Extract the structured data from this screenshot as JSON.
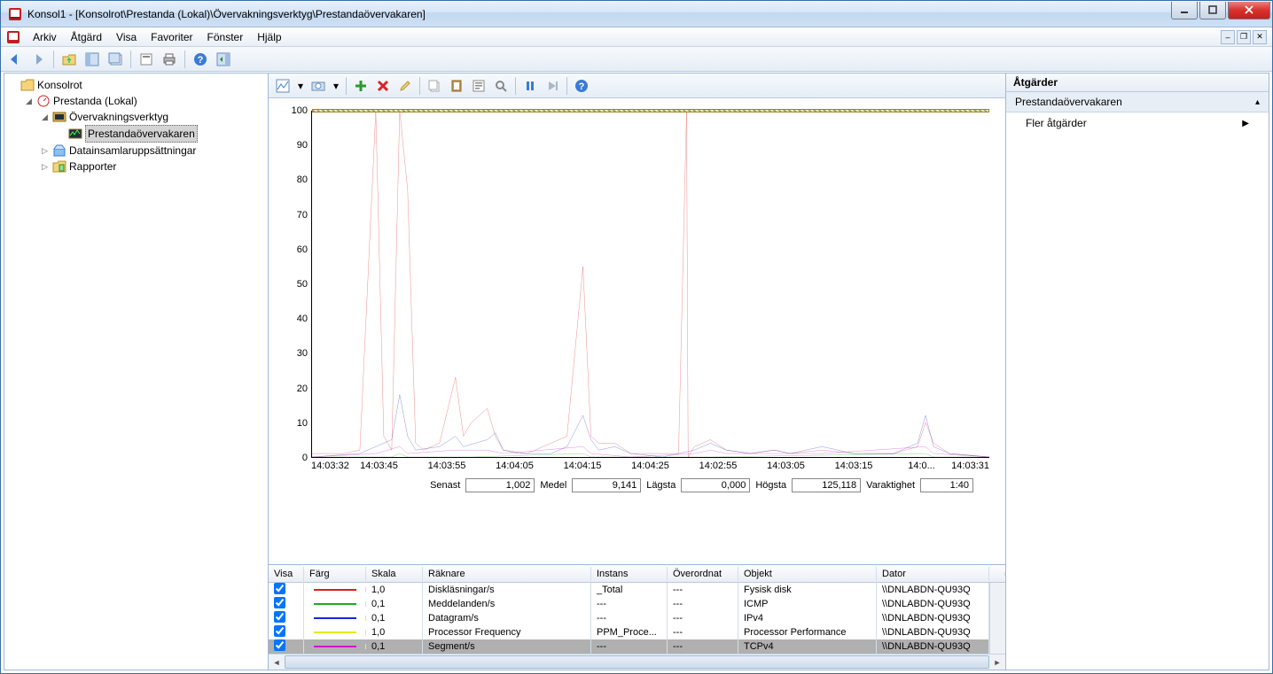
{
  "window": {
    "title": "Konsol1 - [Konsolrot\\Prestanda (Lokal)\\Övervakningsverktyg\\Prestandaövervakaren]"
  },
  "menu": {
    "arkiv": "Arkiv",
    "atgard": "Åtgärd",
    "visa": "Visa",
    "favoriter": "Favoriter",
    "fonster": "Fönster",
    "hjalp": "Hjälp"
  },
  "tree": {
    "root": "Konsolrot",
    "perf": "Prestanda (Lokal)",
    "monTools": "Övervakningsverktyg",
    "perfMon": "Prestandaövervakaren",
    "dataSets": "Datainsamlaruppsättningar",
    "reports": "Rapporter"
  },
  "actionsPane": {
    "title": "Åtgärder",
    "section": "Prestandaövervakaren",
    "more": "Fler åtgärder"
  },
  "chart": {
    "ylim": [
      0,
      100
    ],
    "ytick": 10,
    "xlabels": [
      "14:03:32",
      "14:03:45",
      "14:03:55",
      "14:04:05",
      "14:04:15",
      "14:04:25",
      "14:02:55",
      "14:03:05",
      "14:03:15",
      "14:0...",
      "14:03:31"
    ],
    "series": {
      "red": {
        "color": "#e11b1b",
        "width": 1,
        "pts": [
          [
            0,
            1
          ],
          [
            4,
            1
          ],
          [
            6,
            2
          ],
          [
            8,
            100
          ],
          [
            9,
            6
          ],
          [
            10,
            2
          ],
          [
            11,
            100
          ],
          [
            12,
            77
          ],
          [
            13,
            4
          ],
          [
            14,
            2
          ],
          [
            16,
            4
          ],
          [
            18,
            23
          ],
          [
            19,
            6
          ],
          [
            20,
            10
          ],
          [
            22,
            14
          ],
          [
            23,
            6
          ],
          [
            24,
            2
          ],
          [
            27,
            1
          ],
          [
            32,
            6
          ],
          [
            34,
            55
          ],
          [
            35,
            6
          ],
          [
            36,
            4
          ],
          [
            38,
            4
          ],
          [
            40,
            1
          ],
          [
            46,
            1
          ],
          [
            47,
            100
          ],
          [
            47.2,
            0
          ],
          [
            48,
            3
          ],
          [
            50,
            5
          ],
          [
            52,
            2
          ],
          [
            55,
            1
          ],
          [
            58,
            2
          ],
          [
            60,
            1
          ],
          [
            64,
            2
          ],
          [
            68,
            1
          ],
          [
            73,
            1
          ],
          [
            76,
            3
          ],
          [
            77,
            10
          ],
          [
            78,
            4
          ],
          [
            80,
            1
          ],
          [
            85,
            0
          ]
        ]
      },
      "blue": {
        "color": "#1528d4",
        "width": 1,
        "pts": [
          [
            0,
            0
          ],
          [
            6,
            1
          ],
          [
            8,
            3
          ],
          [
            10,
            5
          ],
          [
            11,
            18
          ],
          [
            12,
            6
          ],
          [
            13,
            2
          ],
          [
            16,
            3
          ],
          [
            18,
            6
          ],
          [
            19,
            3
          ],
          [
            22,
            5
          ],
          [
            23,
            7
          ],
          [
            24,
            2
          ],
          [
            26,
            1
          ],
          [
            30,
            1
          ],
          [
            32,
            3
          ],
          [
            34,
            12
          ],
          [
            35,
            5
          ],
          [
            36,
            2
          ],
          [
            38,
            3
          ],
          [
            40,
            1
          ],
          [
            44,
            0
          ],
          [
            48,
            2
          ],
          [
            50,
            4
          ],
          [
            52,
            2
          ],
          [
            55,
            1
          ],
          [
            58,
            2
          ],
          [
            60,
            1
          ],
          [
            64,
            3
          ],
          [
            68,
            1
          ],
          [
            73,
            1
          ],
          [
            76,
            4
          ],
          [
            77,
            12
          ],
          [
            78,
            3
          ],
          [
            80,
            1
          ],
          [
            85,
            0
          ]
        ]
      },
      "green": {
        "color": "#1faa1f",
        "width": 1,
        "pts": [
          [
            0,
            0
          ],
          [
            10,
            0
          ],
          [
            11,
            1
          ],
          [
            12,
            0
          ],
          [
            20,
            0
          ],
          [
            34,
            1
          ],
          [
            35,
            0
          ],
          [
            50,
            0
          ],
          [
            77,
            1
          ],
          [
            78,
            0
          ],
          [
            85,
            0
          ]
        ]
      },
      "magenta": {
        "color": "#d015d0",
        "width": 1,
        "pts": [
          [
            0,
            0
          ],
          [
            8,
            1
          ],
          [
            11,
            3
          ],
          [
            12,
            1
          ],
          [
            18,
            2
          ],
          [
            22,
            2
          ],
          [
            24,
            1
          ],
          [
            34,
            3
          ],
          [
            35,
            1
          ],
          [
            40,
            0
          ],
          [
            48,
            1
          ],
          [
            50,
            2
          ],
          [
            52,
            1
          ],
          [
            64,
            1
          ],
          [
            77,
            3
          ],
          [
            78,
            1
          ],
          [
            85,
            0
          ]
        ]
      }
    }
  },
  "stats": {
    "senastL": "Senast",
    "senast": "1,002",
    "medelL": "Medel",
    "medel": "9,141",
    "lagstaL": "Lägsta",
    "lagsta": "0,000",
    "hogstaL": "Högsta",
    "hogsta": "125,118",
    "varL": "Varaktighet",
    "var": "1:40"
  },
  "legend": {
    "cols": {
      "visa": "Visa",
      "farg": "Färg",
      "skala": "Skala",
      "raknare": "Räknare",
      "instans": "Instans",
      "over": "Överordnat",
      "objekt": "Objekt",
      "dator": "Dator"
    },
    "rows": [
      {
        "check": true,
        "color": "#e11b1b",
        "skala": "1,0",
        "raknare": "Diskläsningar/s",
        "instans": "_Total",
        "over": "---",
        "objekt": "Fysisk disk",
        "dator": "\\\\DNLABDN-QU93Q"
      },
      {
        "check": true,
        "color": "#1faa1f",
        "skala": "0,1",
        "raknare": "Meddelanden/s",
        "instans": "---",
        "over": "---",
        "objekt": "ICMP",
        "dator": "\\\\DNLABDN-QU93Q"
      },
      {
        "check": true,
        "color": "#1528d4",
        "skala": "0,1",
        "raknare": "Datagram/s",
        "instans": "---",
        "over": "---",
        "objekt": "IPv4",
        "dator": "\\\\DNLABDN-QU93Q"
      },
      {
        "check": true,
        "color": "#e8e820",
        "skala": "1,0",
        "raknare": "Processor Frequency",
        "instans": "PPM_Proce...",
        "over": "---",
        "objekt": "Processor Performance",
        "dator": "\\\\DNLABDN-QU93Q"
      },
      {
        "check": true,
        "color": "#d015d0",
        "skala": "0,1",
        "raknare": "Segment/s",
        "instans": "---",
        "over": "---",
        "objekt": "TCPv4",
        "dator": "\\\\DNLABDN-QU93Q",
        "selected": true
      }
    ]
  }
}
